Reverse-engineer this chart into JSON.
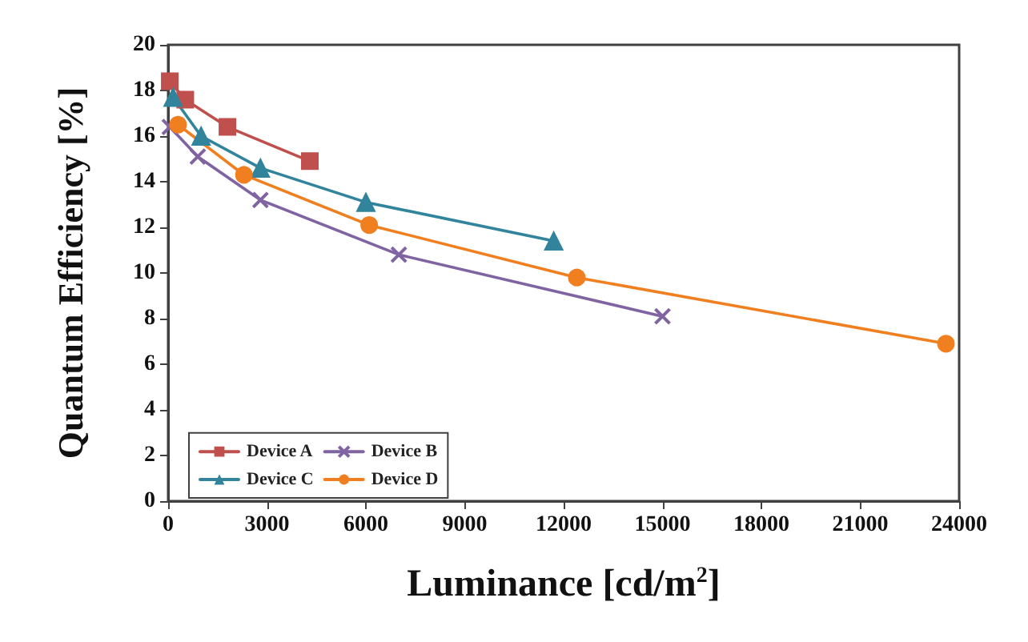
{
  "chart_data": {
    "type": "line",
    "xlabel": "Luminance [cd/m$^{2}$]",
    "ylabel": "Quantum Efficiency [%]",
    "xlim": [
      0,
      24000
    ],
    "xticks": [
      0,
      3000,
      6000,
      9000,
      12000,
      15000,
      18000,
      21000,
      24000
    ],
    "ylim": [
      0,
      20
    ],
    "yticks": [
      0,
      2,
      4,
      6,
      8,
      10,
      12,
      14,
      16,
      18,
      20
    ],
    "grid": false,
    "legend": "bottom left",
    "series": [
      {
        "name": "Device A",
        "color": "#c0504d",
        "marker": "square",
        "x": [
          50,
          520,
          1800,
          4300
        ],
        "values": [
          18.4,
          17.6,
          16.4,
          14.9
        ]
      },
      {
        "name": "Device B",
        "color": "#8064a2",
        "marker": "cross",
        "x": [
          50,
          900,
          2800,
          7000,
          15000
        ],
        "values": [
          16.4,
          15.1,
          13.2,
          10.8,
          8.1
        ]
      },
      {
        "name": "Device C",
        "color": "#31849b",
        "marker": "triangle",
        "x": [
          150,
          1000,
          2800,
          6000,
          11700
        ],
        "values": [
          17.7,
          16.0,
          14.6,
          13.1,
          11.4
        ]
      },
      {
        "name": "Device D",
        "color": "#f07f20",
        "marker": "circle",
        "x": [
          300,
          2300,
          6100,
          12400,
          23600
        ],
        "values": [
          16.5,
          14.3,
          12.1,
          9.8,
          6.9
        ]
      }
    ]
  }
}
